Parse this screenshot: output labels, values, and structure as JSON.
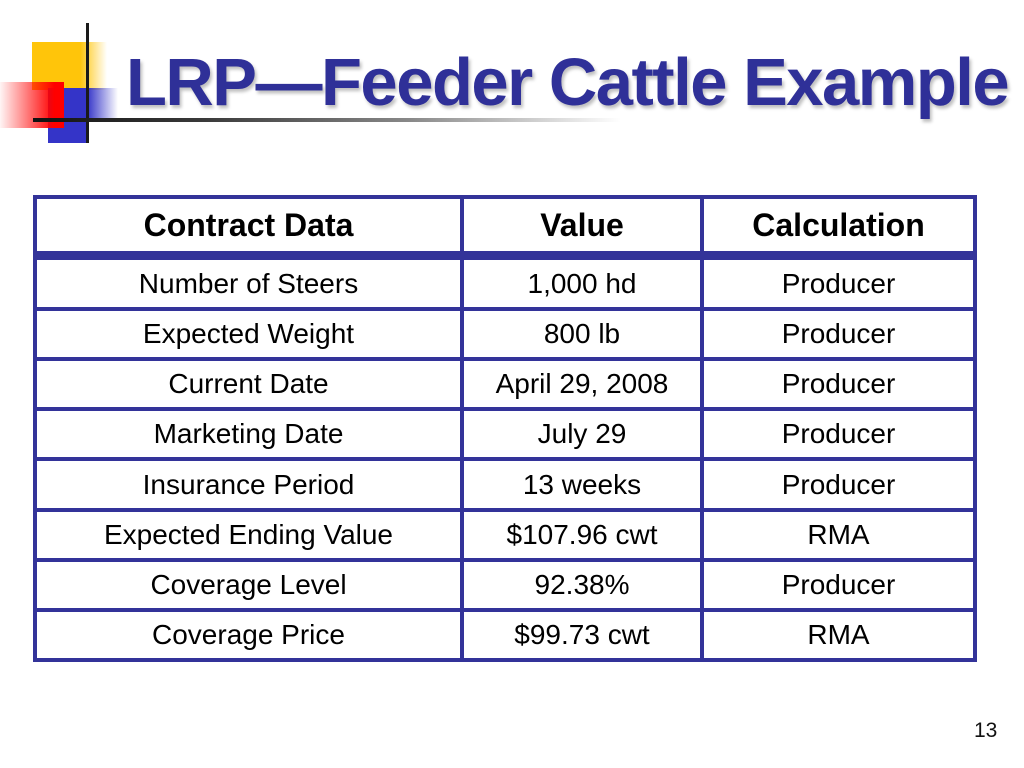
{
  "slide": {
    "title": "LRP—Feeder Cattle Example",
    "page_number": "13"
  },
  "colors": {
    "title_text": "#2F3098",
    "table_border": "#333399",
    "body_text": "#000000",
    "decor_yellow": "#FFC50A",
    "decor_blue": "#3434C8",
    "decor_red": "#FF0000",
    "decor_line_black": "#1a1a1a",
    "background": "#ffffff"
  },
  "table": {
    "headers": {
      "contract_data": "Contract Data",
      "value": "Value",
      "calculation": "Calculation"
    },
    "rows": [
      {
        "label": "Number of Steers",
        "value": "1,000 hd",
        "calculation": "Producer"
      },
      {
        "label": "Expected Weight",
        "value": "800 lb",
        "calculation": "Producer"
      },
      {
        "label": "Current Date",
        "value": "April 29, 2008",
        "calculation": "Producer"
      },
      {
        "label": "Marketing Date",
        "value": "July 29",
        "calculation": "Producer"
      },
      {
        "label": "Insurance Period",
        "value": "13 weeks",
        "calculation": "Producer"
      },
      {
        "label": "Expected Ending Value",
        "value": "$107.96 cwt",
        "calculation": "RMA"
      },
      {
        "label": "Coverage Level",
        "value": "92.38%",
        "calculation": "Producer"
      },
      {
        "label": "Coverage Price",
        "value": "$99.73 cwt",
        "calculation": "RMA"
      }
    ]
  }
}
